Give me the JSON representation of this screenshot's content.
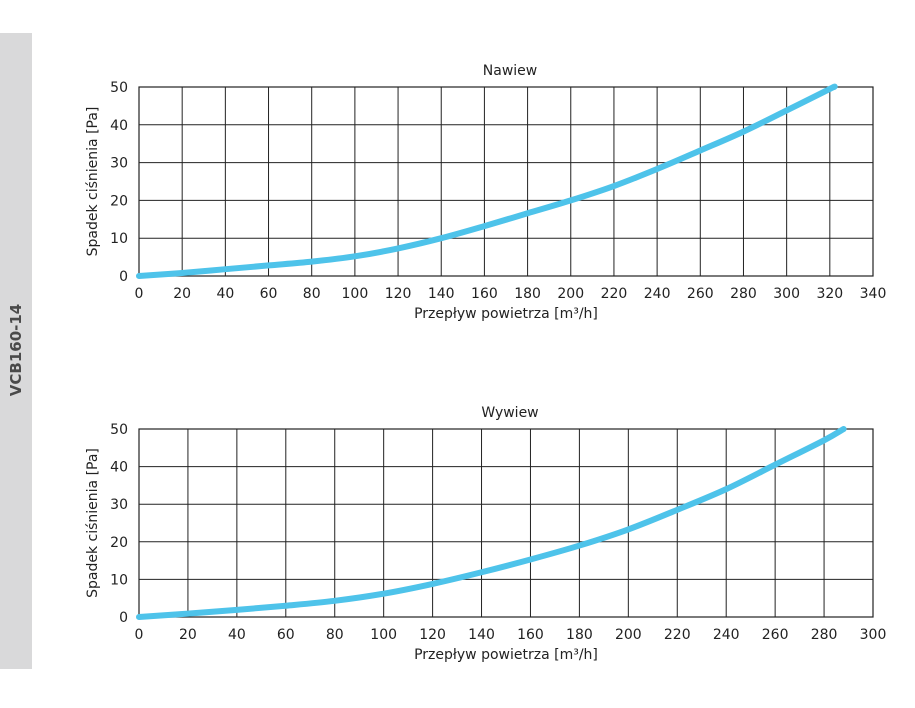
{
  "side_label": "VCB160-14",
  "colors": {
    "curve": "#4ec3ea",
    "grid": "#222222",
    "band": "#d9d9da"
  },
  "chart_data": [
    {
      "type": "line",
      "title": "Nawiew",
      "xlabel": "Przepływ powietrza [m³/h]",
      "ylabel": "Spadek ciśnienia [Pa]",
      "xlim": [
        0,
        340
      ],
      "ylim": [
        0,
        50
      ],
      "xticks": [
        0,
        20,
        40,
        60,
        80,
        100,
        120,
        140,
        160,
        180,
        200,
        220,
        240,
        260,
        280,
        300,
        320,
        340
      ],
      "yticks": [
        0,
        10,
        20,
        30,
        40,
        50
      ],
      "grid": true,
      "series": [
        {
          "x": [
            0,
            20,
            40,
            60,
            80,
            100,
            120,
            140,
            160,
            180,
            200,
            220,
            240,
            260,
            280,
            300,
            320,
            322
          ],
          "y": [
            0,
            0.8,
            1.8,
            2.8,
            3.8,
            5.2,
            7.3,
            10,
            13.2,
            16.6,
            20,
            23.8,
            28.3,
            33.2,
            38.2,
            43.8,
            49.5,
            50
          ]
        }
      ]
    },
    {
      "type": "line",
      "title": "Wywiew",
      "xlabel": "Przepływ powietrza [m³/h]",
      "ylabel": "Spadek ciśnienia [Pa]",
      "xlim": [
        0,
        300
      ],
      "ylim": [
        0,
        50
      ],
      "xticks": [
        0,
        20,
        40,
        60,
        80,
        100,
        120,
        140,
        160,
        180,
        200,
        220,
        240,
        260,
        280,
        300
      ],
      "yticks": [
        0,
        10,
        20,
        30,
        40,
        50
      ],
      "grid": true,
      "series": [
        {
          "x": [
            0,
            20,
            40,
            60,
            80,
            100,
            120,
            140,
            160,
            180,
            200,
            220,
            240,
            260,
            280,
            288
          ],
          "y": [
            0,
            0.9,
            1.9,
            3.0,
            4.3,
            6.2,
            8.8,
            11.9,
            15.3,
            19.0,
            23.3,
            28.5,
            34.0,
            40.5,
            47.0,
            50
          ]
        }
      ]
    }
  ]
}
